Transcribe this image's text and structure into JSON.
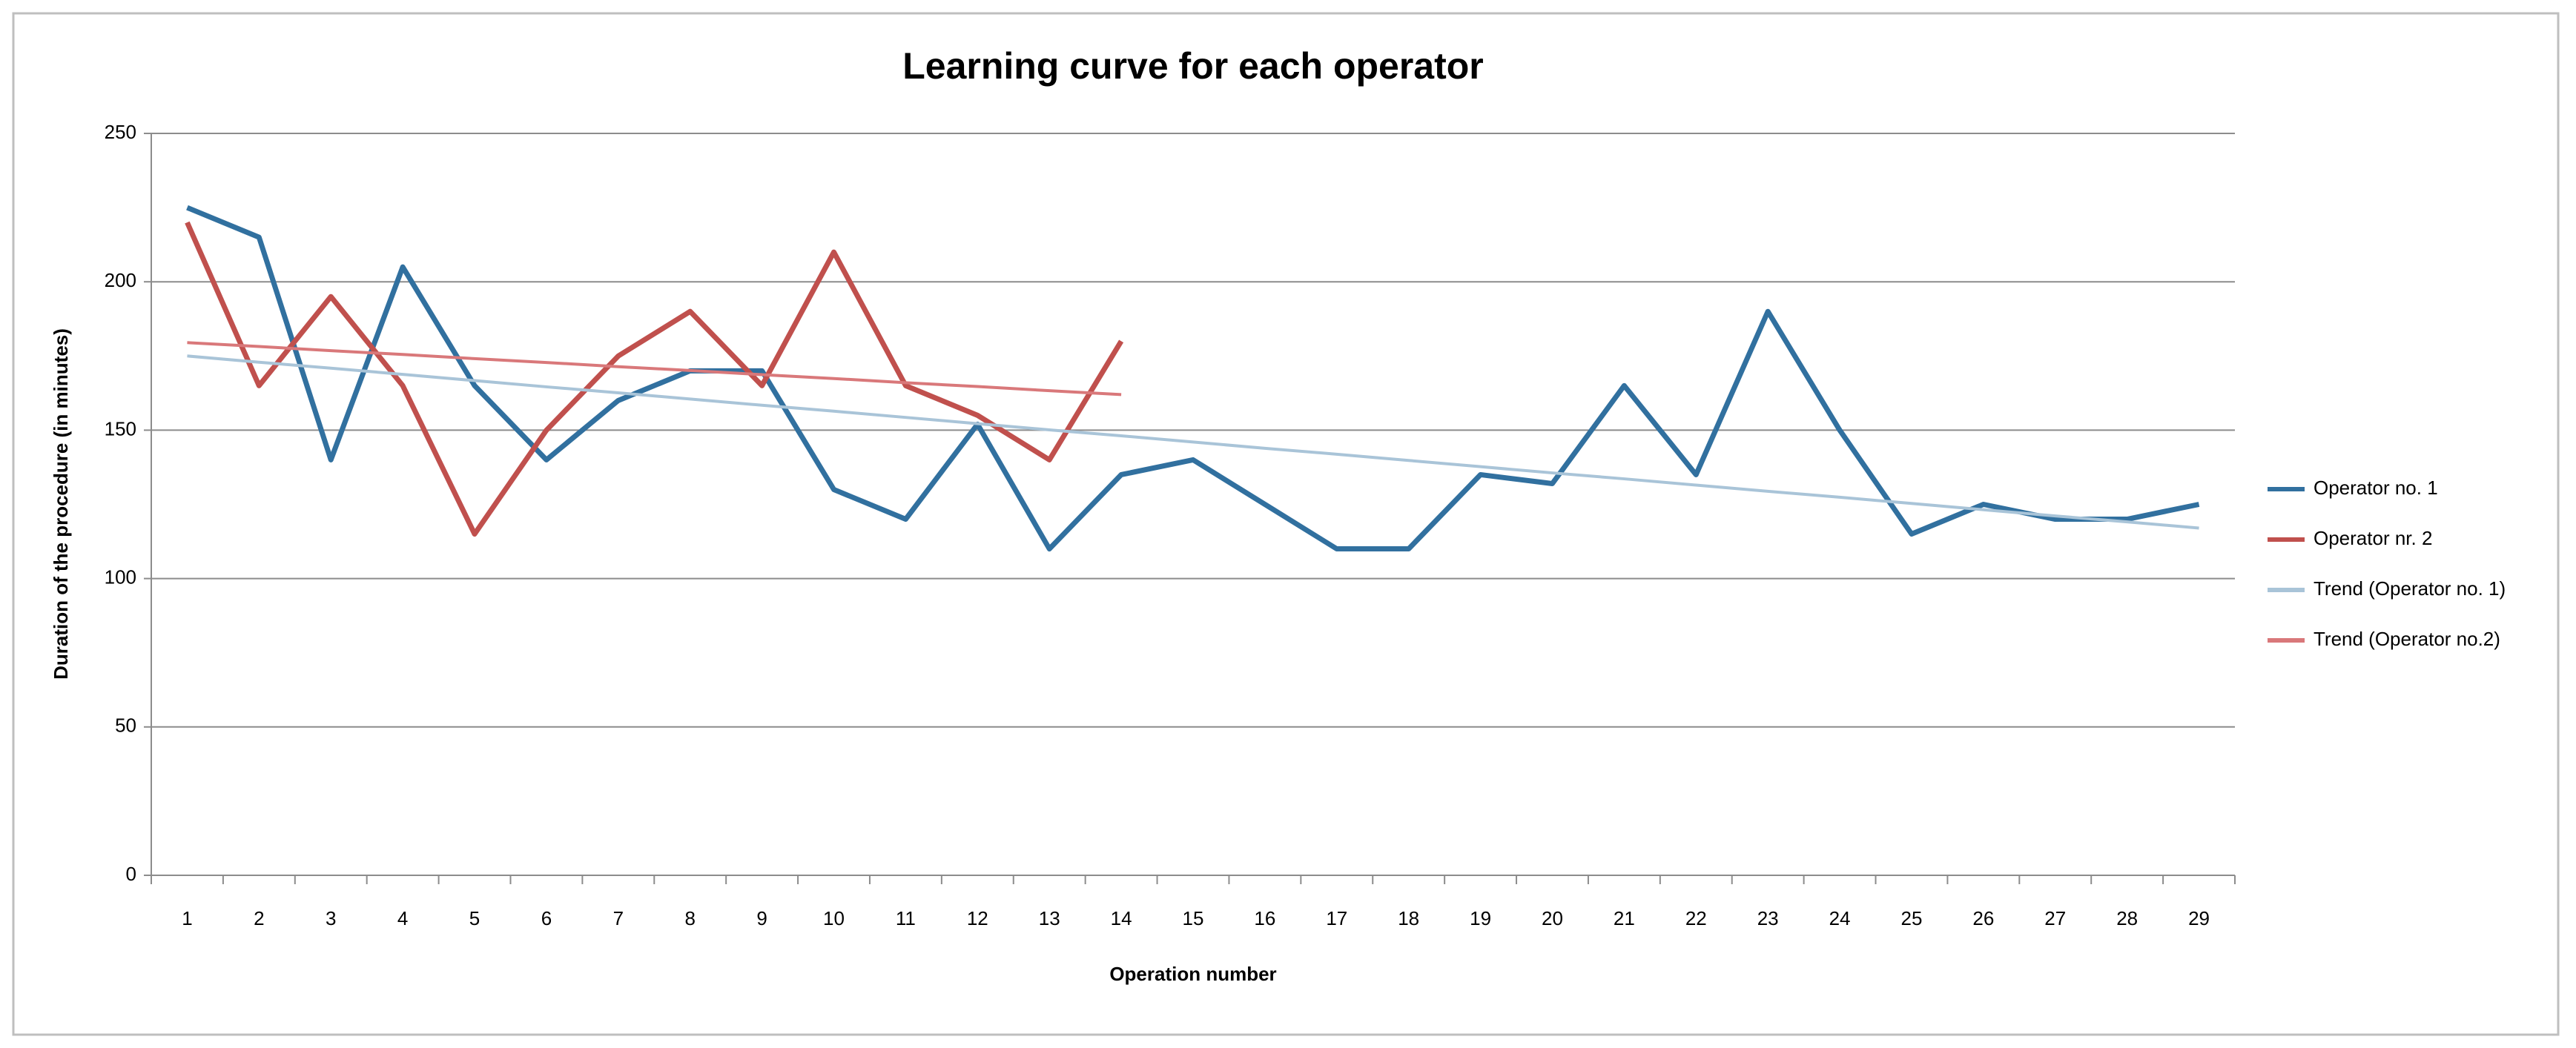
{
  "chart_data": {
    "type": "line",
    "title": "Learning curve for each operator",
    "x_label": "Operation number",
    "y_label": "Duration of the procedure (in minutes)",
    "categories": [
      "1",
      "2",
      "3",
      "4",
      "5",
      "6",
      "7",
      "8",
      "9",
      "10",
      "11",
      "12",
      "13",
      "14",
      "15",
      "16",
      "17",
      "18",
      "19",
      "20",
      "21",
      "22",
      "23",
      "24",
      "25",
      "26",
      "27",
      "28",
      "29"
    ],
    "series": [
      {
        "name": "Operator no. 1",
        "color": "#31709f",
        "values": [
          225,
          215,
          140,
          205,
          165,
          140,
          160,
          170,
          170,
          130,
          120,
          152,
          110,
          135,
          140,
          125,
          110,
          110,
          135,
          132,
          165,
          135,
          190,
          150,
          115,
          125,
          120,
          120,
          125
        ]
      },
      {
        "name": "Operator nr. 2",
        "color": "#c0504d",
        "values": [
          220,
          165,
          195,
          165,
          115,
          150,
          175,
          190,
          165,
          210,
          165,
          155,
          140,
          180,
          null,
          null,
          null,
          null,
          null,
          null,
          null,
          null,
          null,
          null,
          null,
          null,
          null,
          null,
          null
        ]
      },
      {
        "name": "Trend (Operator no. 1)",
        "color": "#a9c4d8",
        "values": [
          175,
          172.9,
          170.9,
          168.8,
          166.7,
          164.6,
          162.6,
          160.5,
          158.4,
          156.4,
          154.3,
          152.2,
          150.1,
          148.1,
          146,
          143.9,
          141.9,
          139.8,
          137.7,
          135.6,
          133.6,
          131.5,
          129.4,
          127.4,
          125.3,
          123.2,
          121.1,
          119.1,
          117
        ]
      },
      {
        "name": "Trend (Operator no.2)",
        "color": "#d9787a",
        "values": [
          179.5,
          178.2,
          176.8,
          175.5,
          174.1,
          172.8,
          171.4,
          170.1,
          168.7,
          167.4,
          166.0,
          164.7,
          163.3,
          162.0,
          null,
          null,
          null,
          null,
          null,
          null,
          null,
          null,
          null,
          null,
          null,
          null,
          null,
          null,
          null
        ]
      }
    ],
    "ylim": [
      0,
      250
    ],
    "yticks": [
      0,
      50,
      100,
      150,
      200,
      250
    ],
    "grid": true,
    "legend": "right"
  }
}
